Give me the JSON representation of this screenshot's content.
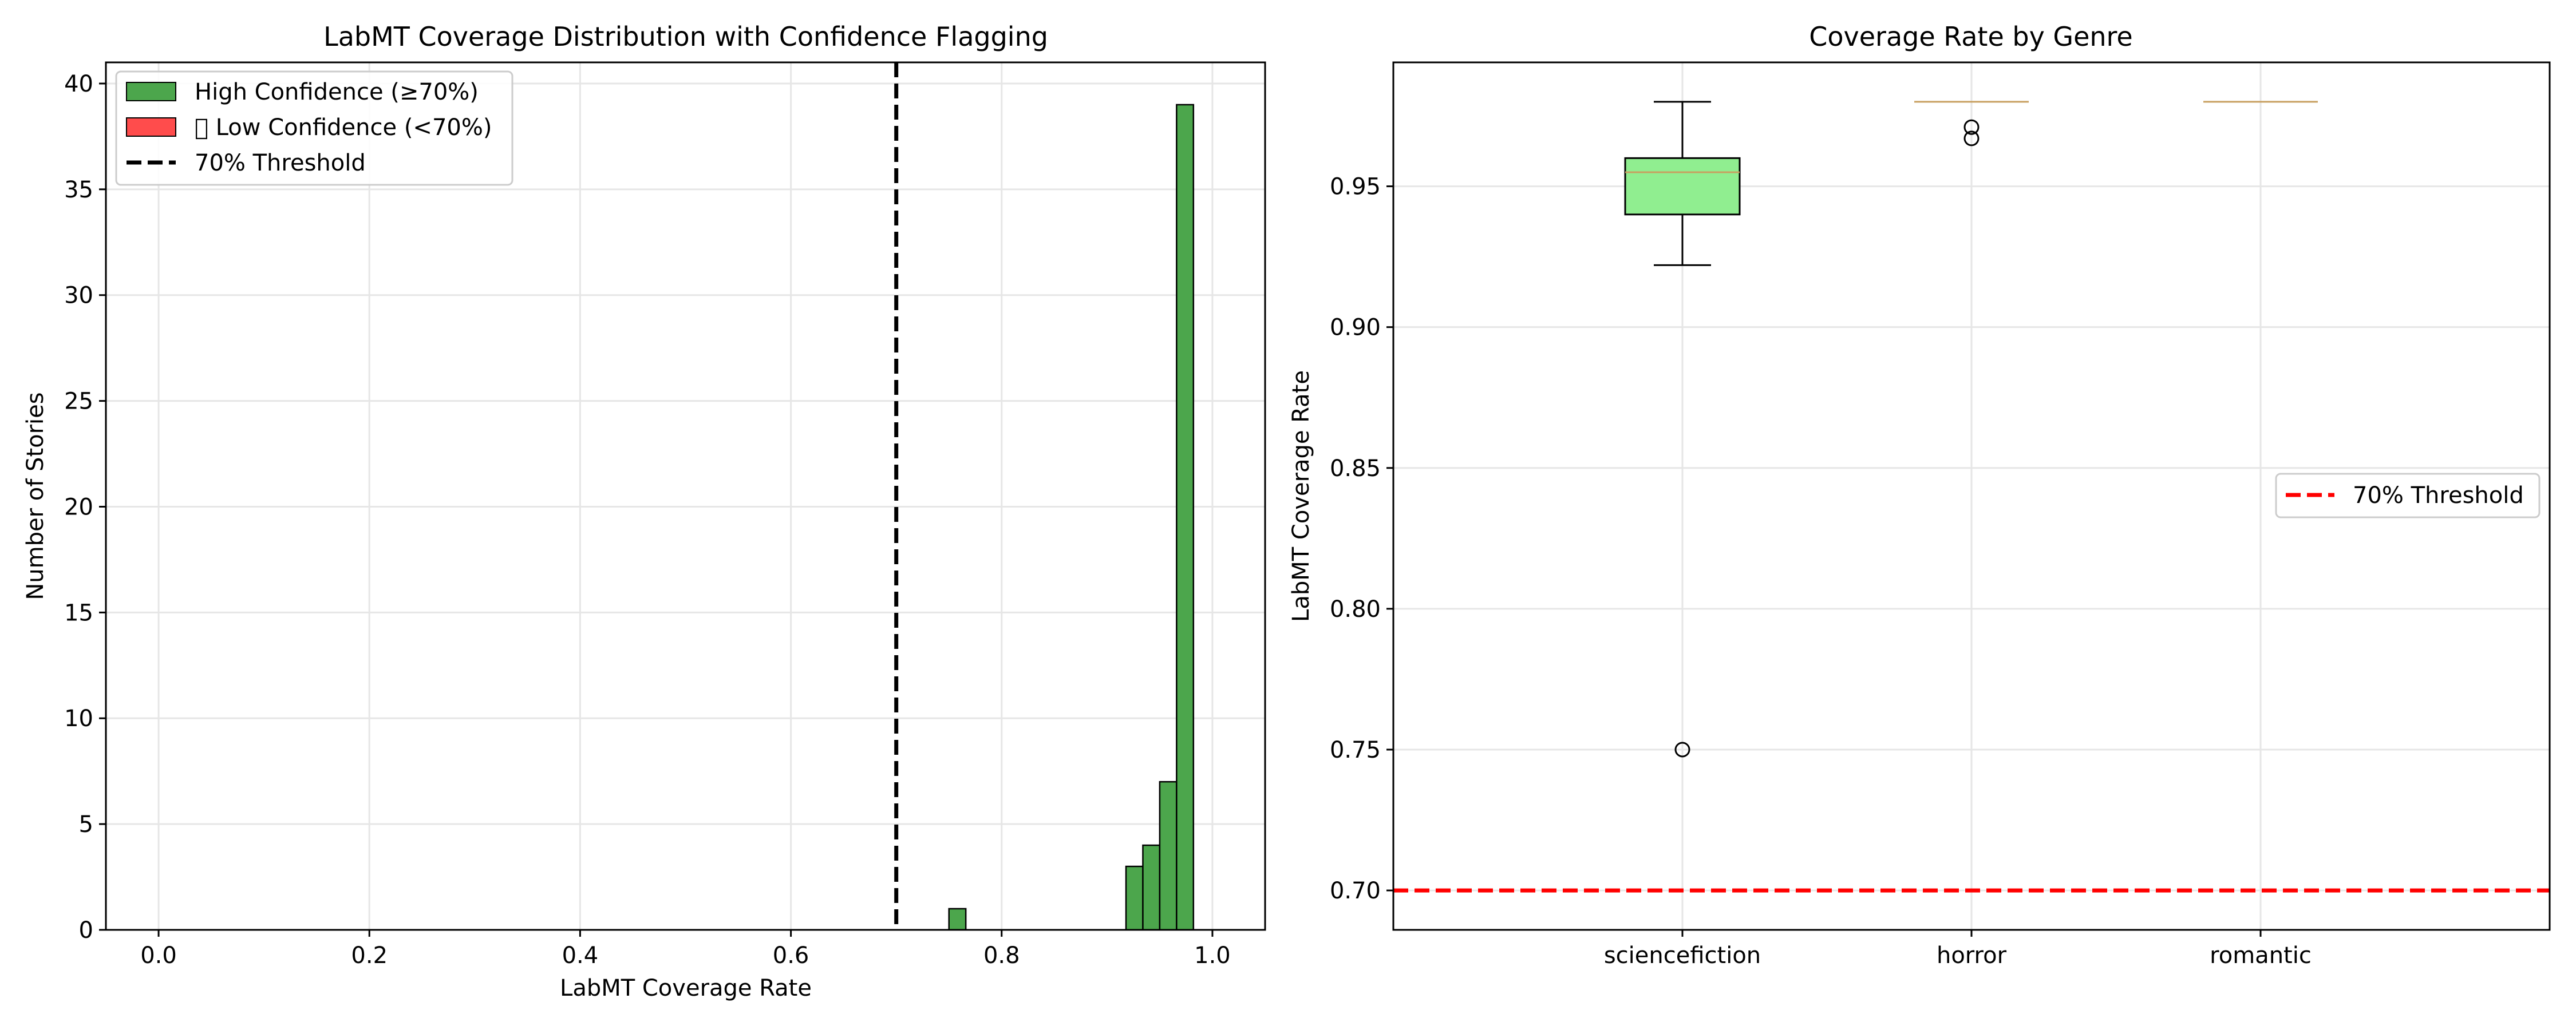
{
  "colors": {
    "high": "#4ca64c",
    "low": "#ff4c4c",
    "threshold_black": "#000000",
    "threshold_red": "#ff0000",
    "box_fill": "#90ee90",
    "median": "#c8a060",
    "grid": "#e6e6e6"
  },
  "chart_data": [
    {
      "type": "bar",
      "title": "LabMT Coverage Distribution with Confidence Flagging",
      "xlabel": "LabMT Coverage Rate",
      "ylabel": "Number of Stories",
      "xlim": [
        -0.05,
        1.05
      ],
      "ylim": [
        0,
        41
      ],
      "xticks": [
        "0.0",
        "0.2",
        "0.4",
        "0.6",
        "0.8",
        "1.0"
      ],
      "xtick_values": [
        0.0,
        0.2,
        0.4,
        0.6,
        0.8,
        1.0
      ],
      "yticks": [
        "0",
        "5",
        "10",
        "15",
        "20",
        "25",
        "30",
        "35",
        "40"
      ],
      "ytick_values": [
        0,
        5,
        10,
        15,
        20,
        25,
        30,
        35,
        40
      ],
      "grid": true,
      "legend_position": "top-left",
      "legend": [
        {
          "label": "High Confidence (≥70%)",
          "kind": "patch",
          "color_key": "high"
        },
        {
          "label": "\u0000 Low Confidence (<70%)",
          "kind": "patch",
          "color_key": "low"
        },
        {
          "label": "70% Threshold",
          "kind": "dashed-line",
          "color_key": "threshold_black"
        }
      ],
      "bins": [
        {
          "x0": 0.75,
          "x1": 0.766,
          "count": 1
        },
        {
          "x0": 0.918,
          "x1": 0.934,
          "count": 3
        },
        {
          "x0": 0.934,
          "x1": 0.95,
          "count": 4
        },
        {
          "x0": 0.95,
          "x1": 0.966,
          "count": 7
        },
        {
          "x0": 0.966,
          "x1": 0.982,
          "count": 39
        }
      ],
      "threshold": 0.7
    },
    {
      "type": "box",
      "title": "Coverage Rate by Genre",
      "xlabel": "",
      "ylabel": "LabMT Coverage Rate",
      "ylim": [
        0.686,
        0.994
      ],
      "yticks": [
        "0.70",
        "0.75",
        "0.80",
        "0.85",
        "0.90",
        "0.95"
      ],
      "ytick_values": [
        0.7,
        0.75,
        0.8,
        0.85,
        0.9,
        0.95
      ],
      "categories": [
        "sciencefiction",
        "horror",
        "romantic"
      ],
      "grid": true,
      "legend_position": "center-right",
      "legend": [
        {
          "label": "70% Threshold",
          "kind": "dashed-line",
          "color_key": "threshold_red"
        }
      ],
      "boxes": [
        {
          "category": "sciencefiction",
          "whisker_low": 0.922,
          "q1": 0.94,
          "median": 0.955,
          "q3": 0.96,
          "whisker_high": 0.98,
          "outliers": [
            0.75
          ]
        },
        {
          "category": "horror",
          "whisker_low": 0.98,
          "q1": 0.98,
          "median": 0.98,
          "q3": 0.98,
          "whisker_high": 0.98,
          "outliers": [
            0.971,
            0.967
          ]
        },
        {
          "category": "romantic",
          "whisker_low": 0.98,
          "q1": 0.98,
          "median": 0.98,
          "q3": 0.98,
          "whisker_high": 0.98,
          "outliers": []
        }
      ],
      "threshold": 0.7
    }
  ]
}
